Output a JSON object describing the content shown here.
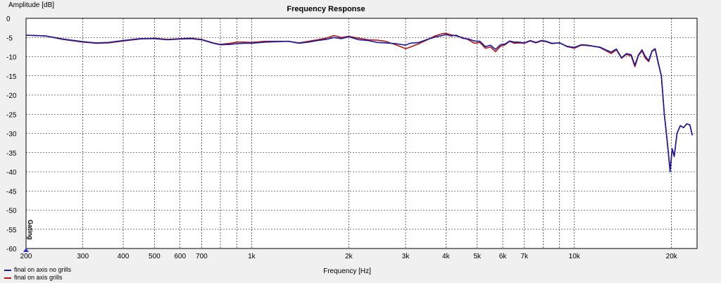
{
  "chart_data": {
    "type": "line",
    "title": "Frequency Response",
    "xlabel": "Frequency [Hz]",
    "ylabel": "Amplitude [dB]",
    "x_scale": "log",
    "xlim": [
      200,
      24000
    ],
    "ylim": [
      -60,
      0
    ],
    "grid": true,
    "legend_position": "bottom-left",
    "marker_label": "Gating",
    "x_ticks": [
      {
        "v": 200,
        "label": "200"
      },
      {
        "v": 300,
        "label": "300"
      },
      {
        "v": 400,
        "label": "400"
      },
      {
        "v": 500,
        "label": "500"
      },
      {
        "v": 600,
        "label": "600"
      },
      {
        "v": 700,
        "label": "700"
      },
      {
        "v": 1000,
        "label": "1k"
      },
      {
        "v": 2000,
        "label": "2k"
      },
      {
        "v": 3000,
        "label": "3k"
      },
      {
        "v": 4000,
        "label": "4k"
      },
      {
        "v": 5000,
        "label": "5k"
      },
      {
        "v": 6000,
        "label": "6k"
      },
      {
        "v": 7000,
        "label": "7k"
      },
      {
        "v": 10000,
        "label": "10k"
      },
      {
        "v": 20000,
        "label": "20k"
      }
    ],
    "y_ticks": [
      0,
      -5,
      -10,
      -15,
      -20,
      -25,
      -30,
      -35,
      -40,
      -45,
      -50,
      -55,
      -60
    ],
    "series": [
      {
        "name": "final on axis no grills",
        "color": "#1a1a9a",
        "points": [
          [
            200,
            -4.4
          ],
          [
            230,
            -4.6
          ],
          [
            260,
            -5.4
          ],
          [
            300,
            -6.1
          ],
          [
            330,
            -6.4
          ],
          [
            360,
            -6.3
          ],
          [
            400,
            -5.8
          ],
          [
            450,
            -5.3
          ],
          [
            500,
            -5.3
          ],
          [
            550,
            -5.6
          ],
          [
            600,
            -5.4
          ],
          [
            650,
            -5.3
          ],
          [
            700,
            -5.6
          ],
          [
            760,
            -6.5
          ],
          [
            800,
            -6.9
          ],
          [
            860,
            -6.8
          ],
          [
            900,
            -6.6
          ],
          [
            950,
            -6.5
          ],
          [
            1000,
            -6.5
          ],
          [
            1100,
            -6.2
          ],
          [
            1200,
            -6.1
          ],
          [
            1300,
            -6.0
          ],
          [
            1400,
            -6.5
          ],
          [
            1500,
            -6.2
          ],
          [
            1600,
            -5.8
          ],
          [
            1700,
            -5.5
          ],
          [
            1800,
            -5.0
          ],
          [
            1900,
            -5.3
          ],
          [
            2000,
            -4.8
          ],
          [
            2150,
            -5.6
          ],
          [
            2300,
            -5.8
          ],
          [
            2450,
            -6.3
          ],
          [
            2600,
            -6.4
          ],
          [
            2800,
            -6.6
          ],
          [
            3000,
            -7.0
          ],
          [
            3100,
            -6.5
          ],
          [
            3300,
            -6.3
          ],
          [
            3500,
            -5.5
          ],
          [
            3700,
            -4.9
          ],
          [
            3900,
            -4.5
          ],
          [
            4000,
            -4.2
          ],
          [
            4150,
            -4.6
          ],
          [
            4300,
            -4.4
          ],
          [
            4500,
            -5.2
          ],
          [
            4700,
            -5.4
          ],
          [
            4900,
            -5.9
          ],
          [
            5100,
            -6.0
          ],
          [
            5300,
            -7.4
          ],
          [
            5500,
            -7.0
          ],
          [
            5700,
            -8.1
          ],
          [
            5900,
            -6.9
          ],
          [
            6100,
            -6.7
          ],
          [
            6300,
            -5.9
          ],
          [
            6500,
            -6.2
          ],
          [
            6700,
            -6.2
          ],
          [
            7000,
            -6.4
          ],
          [
            7300,
            -5.8
          ],
          [
            7600,
            -6.3
          ],
          [
            7900,
            -5.8
          ],
          [
            8200,
            -6.0
          ],
          [
            8500,
            -6.5
          ],
          [
            9000,
            -6.4
          ],
          [
            9500,
            -7.3
          ],
          [
            10000,
            -7.6
          ],
          [
            10500,
            -6.9
          ],
          [
            11000,
            -7.0
          ],
          [
            11500,
            -7.3
          ],
          [
            12000,
            -7.5
          ],
          [
            12500,
            -8.2
          ],
          [
            13000,
            -8.8
          ],
          [
            13500,
            -8.0
          ],
          [
            14000,
            -10.3
          ],
          [
            14500,
            -9.2
          ],
          [
            15000,
            -9.5
          ],
          [
            15400,
            -12.2
          ],
          [
            15800,
            -9.5
          ],
          [
            16200,
            -8.2
          ],
          [
            16600,
            -10.0
          ],
          [
            17000,
            -11.0
          ],
          [
            17400,
            -8.5
          ],
          [
            17800,
            -7.9
          ],
          [
            18200,
            -11.5
          ],
          [
            18600,
            -15.0
          ],
          [
            19000,
            -25.0
          ],
          [
            19400,
            -32.0
          ],
          [
            19800,
            -40.0
          ],
          [
            20100,
            -34.0
          ],
          [
            20400,
            -36.0
          ],
          [
            20800,
            -30.0
          ],
          [
            21300,
            -28.0
          ],
          [
            21800,
            -28.5
          ],
          [
            22300,
            -27.5
          ],
          [
            22800,
            -27.8
          ],
          [
            23200,
            -30.5
          ]
        ]
      },
      {
        "name": "final on axis grills",
        "color": "#b01818",
        "points": [
          [
            200,
            -4.4
          ],
          [
            230,
            -4.6
          ],
          [
            260,
            -5.5
          ],
          [
            300,
            -6.2
          ],
          [
            330,
            -6.5
          ],
          [
            360,
            -6.4
          ],
          [
            400,
            -5.9
          ],
          [
            450,
            -5.4
          ],
          [
            500,
            -5.2
          ],
          [
            550,
            -5.5
          ],
          [
            600,
            -5.3
          ],
          [
            650,
            -5.2
          ],
          [
            700,
            -5.5
          ],
          [
            760,
            -6.4
          ],
          [
            800,
            -6.8
          ],
          [
            860,
            -6.5
          ],
          [
            900,
            -6.2
          ],
          [
            950,
            -6.2
          ],
          [
            1000,
            -6.3
          ],
          [
            1100,
            -6.0
          ],
          [
            1200,
            -6.0
          ],
          [
            1300,
            -6.0
          ],
          [
            1400,
            -6.4
          ],
          [
            1500,
            -6.0
          ],
          [
            1600,
            -5.6
          ],
          [
            1700,
            -5.2
          ],
          [
            1800,
            -4.5
          ],
          [
            1900,
            -5.0
          ],
          [
            2000,
            -4.7
          ],
          [
            2150,
            -5.2
          ],
          [
            2300,
            -5.6
          ],
          [
            2450,
            -5.7
          ],
          [
            2600,
            -6.0
          ],
          [
            2800,
            -6.9
          ],
          [
            3000,
            -7.9
          ],
          [
            3100,
            -7.5
          ],
          [
            3300,
            -6.6
          ],
          [
            3500,
            -5.6
          ],
          [
            3700,
            -4.6
          ],
          [
            3900,
            -4.0
          ],
          [
            4000,
            -3.9
          ],
          [
            4150,
            -4.3
          ],
          [
            4300,
            -4.6
          ],
          [
            4500,
            -5.0
          ],
          [
            4700,
            -5.6
          ],
          [
            4900,
            -6.5
          ],
          [
            5100,
            -6.3
          ],
          [
            5300,
            -7.8
          ],
          [
            5500,
            -7.5
          ],
          [
            5700,
            -8.7
          ],
          [
            5900,
            -7.3
          ],
          [
            6100,
            -6.9
          ],
          [
            6300,
            -6.0
          ],
          [
            6500,
            -6.5
          ],
          [
            6700,
            -6.4
          ],
          [
            7000,
            -6.5
          ],
          [
            7300,
            -5.9
          ],
          [
            7600,
            -6.4
          ],
          [
            7900,
            -5.9
          ],
          [
            8200,
            -6.1
          ],
          [
            8500,
            -6.6
          ],
          [
            9000,
            -6.4
          ],
          [
            9500,
            -7.4
          ],
          [
            10000,
            -7.8
          ],
          [
            10500,
            -7.0
          ],
          [
            11000,
            -7.1
          ],
          [
            11500,
            -7.3
          ],
          [
            12000,
            -7.6
          ],
          [
            12500,
            -8.4
          ],
          [
            13000,
            -9.2
          ],
          [
            13500,
            -8.2
          ],
          [
            14000,
            -10.4
          ],
          [
            14500,
            -9.4
          ],
          [
            15000,
            -9.8
          ],
          [
            15400,
            -12.6
          ],
          [
            15800,
            -9.7
          ],
          [
            16200,
            -8.5
          ],
          [
            16600,
            -10.4
          ],
          [
            17000,
            -11.3
          ],
          [
            17400,
            -8.6
          ],
          [
            17800,
            -8.1
          ],
          [
            18200,
            -11.8
          ],
          [
            18600,
            -15.0
          ],
          [
            19000,
            -25.0
          ],
          [
            19400,
            -32.0
          ],
          [
            19800,
            -39.5
          ],
          [
            20100,
            -34.0
          ],
          [
            20400,
            -36.0
          ],
          [
            20800,
            -30.0
          ],
          [
            21300,
            -28.0
          ],
          [
            21800,
            -28.5
          ],
          [
            22300,
            -27.5
          ],
          [
            22800,
            -27.8
          ],
          [
            23200,
            -30.5
          ]
        ]
      }
    ]
  }
}
